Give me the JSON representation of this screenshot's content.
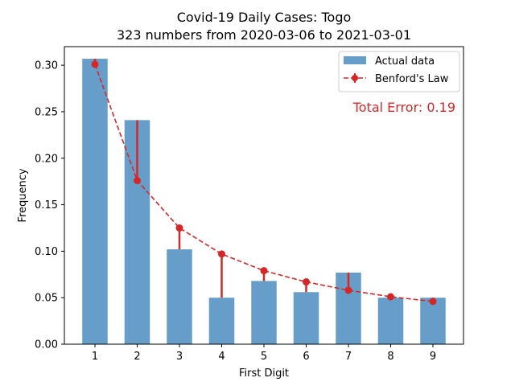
{
  "chart_data": {
    "type": "bar",
    "title": "Covid-19 Daily Cases: Togo",
    "subtitle": "323 numbers from 2020-03-06 to 2021-03-01",
    "xlabel": "First Digit",
    "ylabel": "Frequency",
    "categories": [
      "1",
      "2",
      "3",
      "4",
      "5",
      "6",
      "7",
      "8",
      "9"
    ],
    "ylim": [
      0,
      0.32
    ],
    "yticks": [
      "0.00",
      "0.05",
      "0.10",
      "0.15",
      "0.20",
      "0.25",
      "0.30"
    ],
    "series": [
      {
        "name": "Actual data",
        "type": "bar",
        "color": "#4c8dbf",
        "values": [
          0.307,
          0.241,
          0.102,
          0.05,
          0.068,
          0.056,
          0.077,
          0.05,
          0.05
        ]
      },
      {
        "name": "Benford's Law",
        "type": "line",
        "style": "dashed",
        "marker": "circle",
        "color": "#d62728",
        "values": [
          0.301,
          0.176,
          0.125,
          0.097,
          0.079,
          0.067,
          0.058,
          0.051,
          0.046
        ]
      }
    ],
    "annotation": "Total Error: 0.19",
    "annotation_color": "#d62728",
    "legend_position": "top-right",
    "grid": false
  }
}
